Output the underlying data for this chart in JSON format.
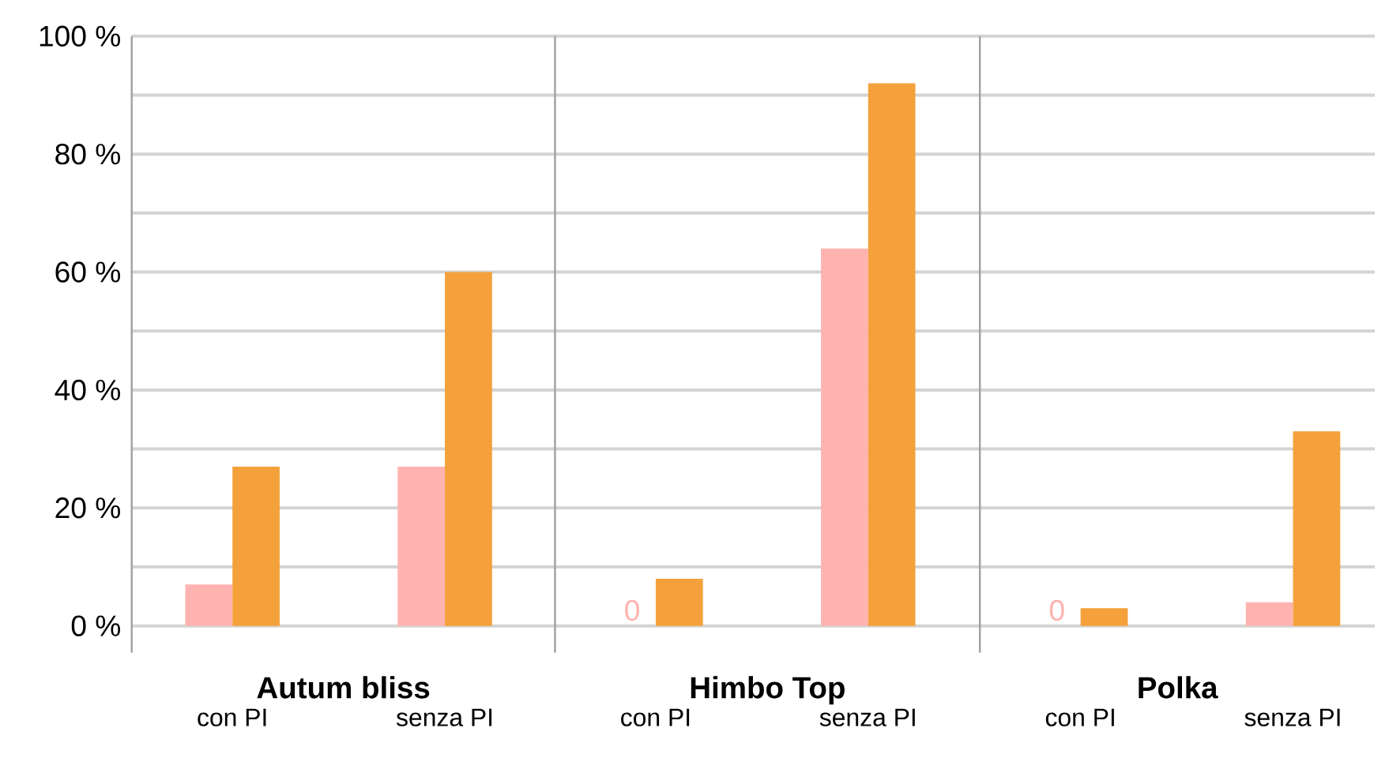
{
  "chart_data": [
    {
      "type": "bar",
      "xlabel": "Autum bliss",
      "categories": [
        "con PI",
        "senza PI"
      ],
      "series": [
        {
          "color": "#ffb3b0",
          "values": [
            7,
            27
          ]
        },
        {
          "color": "#f4a13c",
          "values": [
            27,
            60
          ]
        }
      ],
      "ylim": [
        0,
        100
      ],
      "yticks": [
        {
          "value": 0,
          "label": "0 %"
        },
        {
          "value": 10,
          "label": null
        },
        {
          "value": 20,
          "label": "20 %"
        },
        {
          "value": 30,
          "label": null
        },
        {
          "value": 40,
          "label": "40 %"
        },
        {
          "value": 50,
          "label": null
        },
        {
          "value": 60,
          "label": "60 %"
        },
        {
          "value": 70,
          "label": null
        },
        {
          "value": 80,
          "label": "80 %"
        },
        {
          "value": 90,
          "label": null
        },
        {
          "value": 100,
          "label": "100 %"
        }
      ],
      "grid": "y"
    },
    {
      "type": "bar",
      "xlabel": "Himbo Top",
      "categories": [
        "con PI",
        "senza PI"
      ],
      "series": [
        {
          "color": "#ffb3b0",
          "values": [
            0,
            64
          ],
          "value_labels": [
            "0",
            null
          ]
        },
        {
          "color": "#f4a13c",
          "values": [
            8,
            92
          ]
        }
      ],
      "ylim": [
        0,
        100
      ],
      "yticks": [
        {
          "value": 0,
          "label": null
        },
        {
          "value": 10,
          "label": null
        },
        {
          "value": 20,
          "label": null
        },
        {
          "value": 30,
          "label": null
        },
        {
          "value": 40,
          "label": null
        },
        {
          "value": 50,
          "label": null
        },
        {
          "value": 60,
          "label": null
        },
        {
          "value": 70,
          "label": null
        },
        {
          "value": 80,
          "label": null
        },
        {
          "value": 90,
          "label": null
        },
        {
          "value": 100,
          "label": null
        }
      ],
      "grid": "y",
      "tick_labels": "x"
    },
    {
      "type": "bar",
      "xlabel": "Polka",
      "categories": [
        "con PI",
        "senza PI"
      ],
      "series": [
        {
          "color": "#ffb3b0",
          "values": [
            0,
            4
          ],
          "value_labels": [
            "0",
            null
          ]
        },
        {
          "color": "#f4a13c",
          "values": [
            3,
            33
          ]
        }
      ],
      "ylim": [
        0,
        100
      ],
      "yticks": [
        {
          "value": 0,
          "label": null
        },
        {
          "value": 10,
          "label": null
        },
        {
          "value": 20,
          "label": null
        },
        {
          "value": 30,
          "label": null
        },
        {
          "value": 40,
          "label": null
        },
        {
          "value": 50,
          "label": null
        },
        {
          "value": 60,
          "label": null
        },
        {
          "value": 70,
          "label": null
        },
        {
          "value": 80,
          "label": null
        },
        {
          "value": 90,
          "label": null
        },
        {
          "value": 100,
          "label": null
        }
      ],
      "grid": "y",
      "tick_labels": "x"
    }
  ]
}
